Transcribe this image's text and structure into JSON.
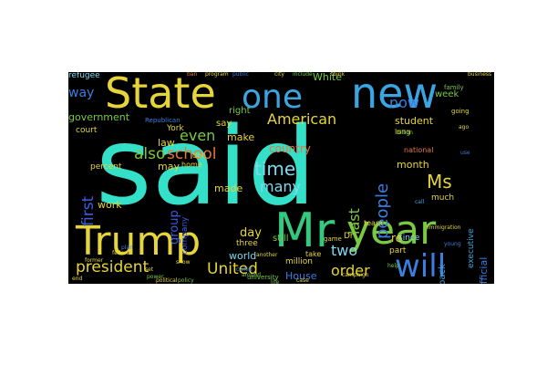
{
  "wordcloud": {
    "background": "#000000",
    "words": [
      {
        "text": "said",
        "color": "#34e0c8"
      },
      {
        "text": "Mr",
        "color": "#33c97f"
      },
      {
        "text": "new",
        "color": "#3aa5e0"
      },
      {
        "text": "State",
        "color": "#e6d53a"
      },
      {
        "text": "one",
        "color": "#3aa5e0"
      },
      {
        "text": "Trump",
        "color": "#e6d53a"
      },
      {
        "text": "year",
        "color": "#7ac943"
      },
      {
        "text": "will",
        "color": "#3a7ee0"
      },
      {
        "text": "people",
        "color": "#3a7ee0"
      },
      {
        "text": "time",
        "color": "#7ed9f0"
      },
      {
        "text": "American",
        "color": "#e6d53a"
      },
      {
        "text": "president",
        "color": "#e6d53a"
      },
      {
        "text": "United",
        "color": "#e6d53a"
      },
      {
        "text": "Ms",
        "color": "#e6d53a"
      },
      {
        "text": "school",
        "color": "#e07a3a"
      },
      {
        "text": "also",
        "color": "#7ac943"
      },
      {
        "text": "many",
        "color": "#7ed9f0"
      },
      {
        "text": "first",
        "color": "#3a5ee0"
      },
      {
        "text": "last",
        "color": "#7ac943"
      },
      {
        "text": "order",
        "color": "#e6d53a"
      },
      {
        "text": "two",
        "color": "#7ed9f0"
      },
      {
        "text": "even",
        "color": "#7ac943"
      },
      {
        "text": "now",
        "color": "#3a7ee0"
      },
      {
        "text": "group",
        "color": "#3a5ee0"
      },
      {
        "text": "country",
        "color": "#e07a3a"
      },
      {
        "text": "day",
        "color": "#e6d53a"
      },
      {
        "text": "way",
        "color": "#3a7ee0"
      },
      {
        "text": "law",
        "color": "#e6d53a"
      },
      {
        "text": "government",
        "color": "#7ac943"
      },
      {
        "text": "student",
        "color": "#e6d53a"
      },
      {
        "text": "month",
        "color": "#e6d53a"
      },
      {
        "text": "official",
        "color": "#3a7ee0"
      },
      {
        "text": "executive",
        "color": "#3aa5e0"
      },
      {
        "text": "White",
        "color": "#7ac943"
      },
      {
        "text": "make",
        "color": "#e6d53a"
      },
      {
        "text": "made",
        "color": "#e6d53a"
      },
      {
        "text": "work",
        "color": "#e6d53a"
      },
      {
        "text": "world",
        "color": "#7ed9f0"
      },
      {
        "text": "House",
        "color": "#3a7ee0"
      },
      {
        "text": "back",
        "color": "#3aa5e0"
      },
      {
        "text": "may",
        "color": "#e6d53a"
      },
      {
        "text": "say",
        "color": "#e6d53a"
      },
      {
        "text": "right",
        "color": "#7ac943"
      },
      {
        "text": "court",
        "color": "#e6d53a"
      },
      {
        "text": "percent",
        "color": "#e6d53a"
      },
      {
        "text": "week",
        "color": "#7ac943"
      },
      {
        "text": "refugee",
        "color": "#7ed9f0"
      },
      {
        "text": "administration",
        "color": "#e6d53a"
      },
      {
        "text": "still",
        "color": "#7ac943"
      },
      {
        "text": "part",
        "color": "#e6d53a"
      },
      {
        "text": "since",
        "color": "#7ed9f0"
      },
      {
        "text": "much",
        "color": "#e6d53a"
      },
      {
        "text": "company",
        "color": "#3a5ee0"
      },
      {
        "text": "million",
        "color": "#e6d53a"
      },
      {
        "text": "three",
        "color": "#e6d53a"
      },
      {
        "text": "national",
        "color": "#e07a3a"
      },
      {
        "text": "York",
        "color": "#e6d53a"
      },
      {
        "text": "Republican",
        "color": "#3a7ee0"
      },
      {
        "text": "home",
        "color": "#e6d53a"
      },
      {
        "text": "don",
        "color": "#e6d53a"
      },
      {
        "text": "Dr",
        "color": "#e6d53a"
      },
      {
        "text": "re",
        "color": "#e6d53a"
      },
      {
        "text": "take",
        "color": "#e6d53a"
      },
      {
        "text": "long",
        "color": "#e6d53a"
      },
      {
        "text": "team",
        "color": "#e6d53a"
      },
      {
        "text": "family",
        "color": "#7ac943"
      },
      {
        "text": "going",
        "color": "#e6d53a"
      },
      {
        "text": "game",
        "color": "#e6d53a"
      },
      {
        "text": "university",
        "color": "#7ac943"
      },
      {
        "text": "program",
        "color": "#e6d53a"
      },
      {
        "text": "campaign",
        "color": "#e6d53a"
      },
      {
        "text": "another",
        "color": "#e6d53a"
      },
      {
        "text": "help",
        "color": "#7ac943"
      },
      {
        "text": "called",
        "color": "#3a7ee0"
      },
      {
        "text": "around",
        "color": "#7ac943"
      },
      {
        "text": "end",
        "color": "#e6d53a"
      },
      {
        "text": "political",
        "color": "#e6d53a"
      },
      {
        "text": "public",
        "color": "#3a7ee0"
      },
      {
        "text": "city",
        "color": "#e6d53a"
      },
      {
        "text": "ban",
        "color": "#e07a3a"
      },
      {
        "text": "power",
        "color": "#7ac943"
      },
      {
        "text": "case",
        "color": "#e6d53a"
      },
      {
        "text": "use",
        "color": "#3a7ee0"
      },
      {
        "text": "ago",
        "color": "#e6d53a"
      },
      {
        "text": "billion",
        "color": "#7ac943"
      },
      {
        "text": "set",
        "color": "#e6d53a"
      },
      {
        "text": "call",
        "color": "#3aa5e0"
      },
      {
        "text": "federal",
        "color": "#e6d53a"
      },
      {
        "text": "policy",
        "color": "#7ac943"
      },
      {
        "text": "former",
        "color": "#e6d53a"
      },
      {
        "text": "plan",
        "color": "#3a7ee0"
      },
      {
        "text": "show",
        "color": "#e6d53a"
      },
      {
        "text": "include",
        "color": "#7ac943"
      },
      {
        "text": "think",
        "color": "#e6d53a"
      },
      {
        "text": "immigration",
        "color": "#e6d53a"
      },
      {
        "text": "young",
        "color": "#3a7ee0"
      },
      {
        "text": "business",
        "color": "#e6d53a"
      },
      {
        "text": "life",
        "color": "#7ac943"
      }
    ]
  }
}
